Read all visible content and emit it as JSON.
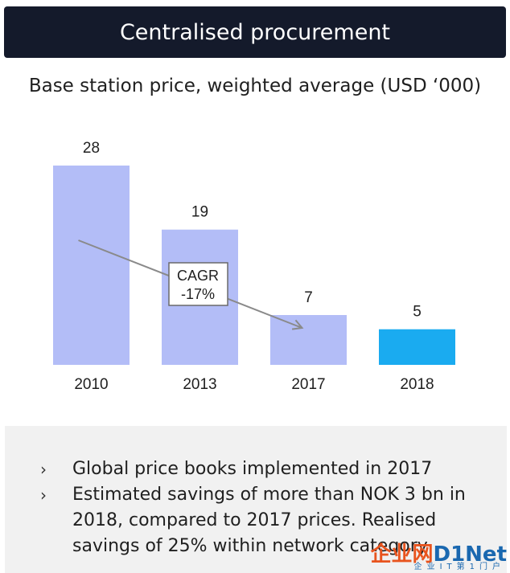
{
  "header": {
    "title": "Centralised procurement"
  },
  "chart_data": {
    "type": "bar",
    "title": "Base station price, weighted average (USD ‘000)",
    "categories": [
      "2010",
      "2013",
      "2017",
      "2018"
    ],
    "values": [
      28,
      19,
      7,
      5
    ],
    "data_labels": [
      "28",
      "19",
      "7",
      "5"
    ],
    "colors": [
      "#b3bdf7",
      "#b3bdf7",
      "#b3bdf7",
      "#1aabf0"
    ],
    "ylim": [
      0,
      28
    ],
    "grid": false,
    "annotation": {
      "line1": "CAGR",
      "line2": "-17%"
    },
    "trend_arrow": {
      "from_category": "2010",
      "to_category": "2017"
    }
  },
  "notes": {
    "bullet_glyph": "›",
    "items": [
      "Global price books implemented in 2017",
      "Estimated savings of more than NOK 3 bn in 2018, compared to 2017 prices.  Realised savings of 25% within network category"
    ]
  },
  "watermark": {
    "brand_left": "企业网",
    "brand_right": "D1Net",
    "tagline": "企业IT第1门户"
  }
}
